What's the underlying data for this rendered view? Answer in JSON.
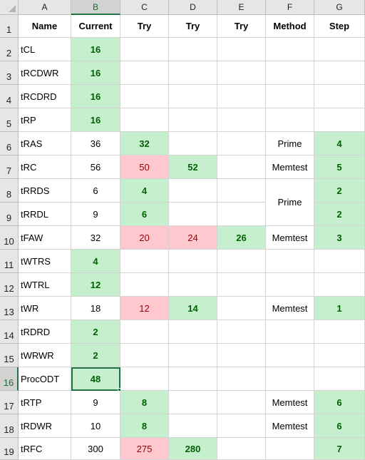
{
  "columns": [
    "A",
    "B",
    "C",
    "D",
    "E",
    "F",
    "G"
  ],
  "active_column": "B",
  "active_row": 16,
  "selected_cell": "B16",
  "colors": {
    "good_fill": "#c6efce",
    "good_text": "#006100",
    "bad_fill": "#ffc7ce",
    "bad_text": "#9c0006",
    "selection": "#217346"
  },
  "header_row": [
    "Name",
    "Current",
    "Try",
    "Try",
    "Try",
    "Method",
    "Step"
  ],
  "rows": [
    {
      "num": "2",
      "cells": [
        {
          "v": "tCL"
        },
        {
          "v": "16",
          "s": "good"
        },
        {
          "v": ""
        },
        {
          "v": ""
        },
        {
          "v": ""
        },
        {
          "v": ""
        },
        {
          "v": ""
        }
      ]
    },
    {
      "num": "3",
      "cells": [
        {
          "v": "tRCDWR"
        },
        {
          "v": "16",
          "s": "good"
        },
        {
          "v": ""
        },
        {
          "v": ""
        },
        {
          "v": ""
        },
        {
          "v": ""
        },
        {
          "v": ""
        }
      ]
    },
    {
      "num": "4",
      "cells": [
        {
          "v": "tRCDRD"
        },
        {
          "v": "16",
          "s": "good"
        },
        {
          "v": ""
        },
        {
          "v": ""
        },
        {
          "v": ""
        },
        {
          "v": ""
        },
        {
          "v": ""
        }
      ]
    },
    {
      "num": "5",
      "cells": [
        {
          "v": "tRP"
        },
        {
          "v": "16",
          "s": "good"
        },
        {
          "v": ""
        },
        {
          "v": ""
        },
        {
          "v": ""
        },
        {
          "v": ""
        },
        {
          "v": ""
        }
      ]
    },
    {
      "num": "6",
      "cells": [
        {
          "v": "tRAS"
        },
        {
          "v": "36"
        },
        {
          "v": "32",
          "s": "good"
        },
        {
          "v": ""
        },
        {
          "v": ""
        },
        {
          "v": "Prime"
        },
        {
          "v": "4",
          "s": "good"
        }
      ]
    },
    {
      "num": "7",
      "cells": [
        {
          "v": "tRC"
        },
        {
          "v": "56"
        },
        {
          "v": "50",
          "s": "bad"
        },
        {
          "v": "52",
          "s": "good"
        },
        {
          "v": ""
        },
        {
          "v": "Memtest"
        },
        {
          "v": "5",
          "s": "good"
        }
      ]
    },
    {
      "num": "8",
      "cells": [
        {
          "v": "tRRDS"
        },
        {
          "v": "6"
        },
        {
          "v": "4",
          "s": "good"
        },
        {
          "v": ""
        },
        {
          "v": ""
        },
        {
          "v": "Prime",
          "merge": 2
        },
        {
          "v": "2",
          "s": "good"
        }
      ]
    },
    {
      "num": "9",
      "cells": [
        {
          "v": "tRRDL"
        },
        {
          "v": "9"
        },
        {
          "v": "6",
          "s": "good"
        },
        {
          "v": ""
        },
        {
          "v": ""
        },
        {
          "v": "",
          "merged": true
        },
        {
          "v": "2",
          "s": "good"
        }
      ]
    },
    {
      "num": "10",
      "cells": [
        {
          "v": "tFAW"
        },
        {
          "v": "32"
        },
        {
          "v": "20",
          "s": "bad"
        },
        {
          "v": "24",
          "s": "bad"
        },
        {
          "v": "26",
          "s": "good"
        },
        {
          "v": "Memtest"
        },
        {
          "v": "3",
          "s": "good"
        }
      ]
    },
    {
      "num": "11",
      "cells": [
        {
          "v": "tWTRS"
        },
        {
          "v": "4",
          "s": "good"
        },
        {
          "v": ""
        },
        {
          "v": ""
        },
        {
          "v": ""
        },
        {
          "v": ""
        },
        {
          "v": ""
        }
      ]
    },
    {
      "num": "12",
      "cells": [
        {
          "v": "tWTRL"
        },
        {
          "v": "12",
          "s": "good"
        },
        {
          "v": ""
        },
        {
          "v": ""
        },
        {
          "v": ""
        },
        {
          "v": ""
        },
        {
          "v": ""
        }
      ]
    },
    {
      "num": "13",
      "cells": [
        {
          "v": "tWR"
        },
        {
          "v": "18"
        },
        {
          "v": "12",
          "s": "bad"
        },
        {
          "v": "14",
          "s": "good"
        },
        {
          "v": ""
        },
        {
          "v": "Memtest"
        },
        {
          "v": "1",
          "s": "good"
        }
      ]
    },
    {
      "num": "14",
      "cells": [
        {
          "v": "tRDRD"
        },
        {
          "v": "2",
          "s": "good"
        },
        {
          "v": ""
        },
        {
          "v": ""
        },
        {
          "v": ""
        },
        {
          "v": ""
        },
        {
          "v": ""
        }
      ]
    },
    {
      "num": "15",
      "cells": [
        {
          "v": "tWRWR"
        },
        {
          "v": "2",
          "s": "good"
        },
        {
          "v": ""
        },
        {
          "v": ""
        },
        {
          "v": ""
        },
        {
          "v": ""
        },
        {
          "v": ""
        }
      ]
    },
    {
      "num": "16",
      "cells": [
        {
          "v": "ProcODT"
        },
        {
          "v": "48",
          "s": "good"
        },
        {
          "v": ""
        },
        {
          "v": ""
        },
        {
          "v": ""
        },
        {
          "v": ""
        },
        {
          "v": ""
        }
      ]
    },
    {
      "num": "17",
      "cells": [
        {
          "v": "tRTP"
        },
        {
          "v": "9"
        },
        {
          "v": "8",
          "s": "good"
        },
        {
          "v": ""
        },
        {
          "v": ""
        },
        {
          "v": "Memtest"
        },
        {
          "v": "6",
          "s": "good"
        }
      ]
    },
    {
      "num": "18",
      "cells": [
        {
          "v": "tRDWR"
        },
        {
          "v": "10"
        },
        {
          "v": "8",
          "s": "good"
        },
        {
          "v": ""
        },
        {
          "v": ""
        },
        {
          "v": "Memtest"
        },
        {
          "v": "6",
          "s": "good"
        }
      ]
    },
    {
      "num": "19",
      "cells": [
        {
          "v": "tRFC"
        },
        {
          "v": "300"
        },
        {
          "v": "275",
          "s": "bad"
        },
        {
          "v": "280",
          "s": "good"
        },
        {
          "v": ""
        },
        {
          "v": ""
        },
        {
          "v": "7",
          "s": "good"
        }
      ]
    }
  ]
}
